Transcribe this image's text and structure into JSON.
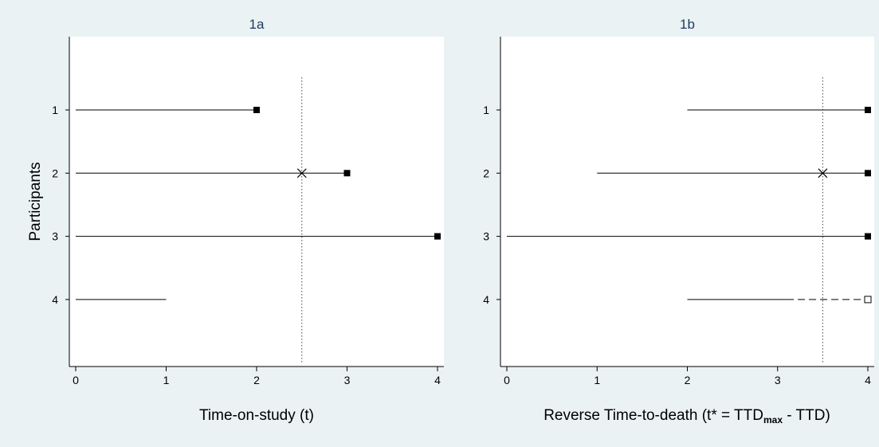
{
  "chart_data": [
    {
      "type": "line",
      "title": "1a",
      "xlabel": "Time-on-study (t)",
      "ylabel": "Participants",
      "xlim": [
        0,
        4
      ],
      "ylim": [
        0.5,
        5
      ],
      "x_ticks": [
        "0",
        "1",
        "2",
        "3",
        "4"
      ],
      "y_ticks": [
        "1",
        "2",
        "3",
        "4"
      ],
      "reference_line": {
        "x": 2.5,
        "style": "dotted"
      },
      "series": [
        {
          "participant": "1",
          "start": 0,
          "end": 2,
          "end_marker": "filled-square"
        },
        {
          "participant": "2",
          "start": 0,
          "end": 3,
          "end_marker": "filled-square",
          "cross_at": 2.5
        },
        {
          "participant": "3",
          "start": 0,
          "end": 4,
          "end_marker": "filled-square"
        },
        {
          "participant": "4",
          "start": 0,
          "end": 1,
          "end_marker": "none"
        }
      ]
    },
    {
      "type": "line",
      "title": "1b",
      "xlabel_parts": {
        "main": "Reverse Time-to-death (t* = TTD",
        "subscript": "max",
        "tail": " - TTD)"
      },
      "ylabel": "",
      "xlim": [
        0,
        4
      ],
      "ylim": [
        0.5,
        5
      ],
      "x_ticks": [
        "0",
        "1",
        "2",
        "3",
        "4"
      ],
      "y_ticks": [
        "1",
        "2",
        "3",
        "4"
      ],
      "reference_line": {
        "x": 3.5,
        "style": "dotted"
      },
      "series": [
        {
          "participant": "1",
          "start": 2,
          "end": 4,
          "end_marker": "filled-square"
        },
        {
          "participant": "2",
          "start": 1,
          "end": 4,
          "end_marker": "filled-square",
          "cross_at": 3.5
        },
        {
          "participant": "3",
          "start": 0,
          "end": 4,
          "end_marker": "filled-square"
        },
        {
          "participant": "4",
          "start": 2,
          "end": 4,
          "dashed_from": 3.1,
          "end_marker": "open-square"
        }
      ]
    }
  ],
  "colors": {
    "background": "#eaf2f3",
    "plot_area": "#ffffff",
    "title": "#1e3a5f",
    "lines": "#000000"
  }
}
